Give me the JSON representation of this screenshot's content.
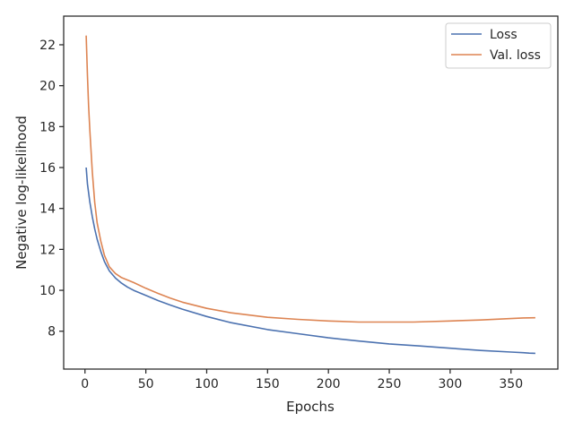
{
  "chart_data": {
    "type": "line",
    "title": "",
    "xlabel": "Epochs",
    "ylabel": "Negative log-likelihood",
    "xlim": [
      -17.5,
      388.5
    ],
    "ylim": [
      6.15,
      23.4
    ],
    "xticks": [
      0,
      50,
      100,
      150,
      200,
      250,
      300,
      350
    ],
    "yticks": [
      8,
      10,
      12,
      14,
      16,
      18,
      20,
      22
    ],
    "grid": false,
    "legend_position": "top-right",
    "series": [
      {
        "name": "Loss",
        "color": "#4c72b0",
        "x": [
          1,
          2,
          4,
          6,
          8,
          10,
          13,
          16,
          20,
          25,
          30,
          35,
          40,
          50,
          60,
          70,
          80,
          100,
          120,
          150,
          175,
          200,
          225,
          250,
          275,
          300,
          325,
          350,
          360,
          365,
          370
        ],
        "y": [
          16.0,
          15.2,
          14.3,
          13.6,
          13.0,
          12.5,
          11.9,
          11.4,
          10.95,
          10.6,
          10.35,
          10.15,
          10.0,
          9.75,
          9.5,
          9.28,
          9.08,
          8.72,
          8.42,
          8.08,
          7.88,
          7.68,
          7.52,
          7.38,
          7.28,
          7.17,
          7.06,
          6.98,
          6.95,
          6.93,
          6.92
        ]
      },
      {
        "name": "Val. loss",
        "color": "#dd8452",
        "x": [
          1,
          2,
          3,
          4,
          6,
          8,
          10,
          13,
          16,
          20,
          25,
          30,
          35,
          40,
          50,
          60,
          70,
          80,
          100,
          120,
          150,
          175,
          200,
          225,
          250,
          270,
          300,
          325,
          350,
          360,
          370
        ],
        "y": [
          22.45,
          20.5,
          19.0,
          17.8,
          15.8,
          14.3,
          13.3,
          12.4,
          11.7,
          11.15,
          10.82,
          10.62,
          10.5,
          10.38,
          10.1,
          9.85,
          9.62,
          9.42,
          9.12,
          8.9,
          8.68,
          8.58,
          8.5,
          8.45,
          8.45,
          8.45,
          8.5,
          8.55,
          8.62,
          8.65,
          8.66
        ]
      }
    ]
  }
}
